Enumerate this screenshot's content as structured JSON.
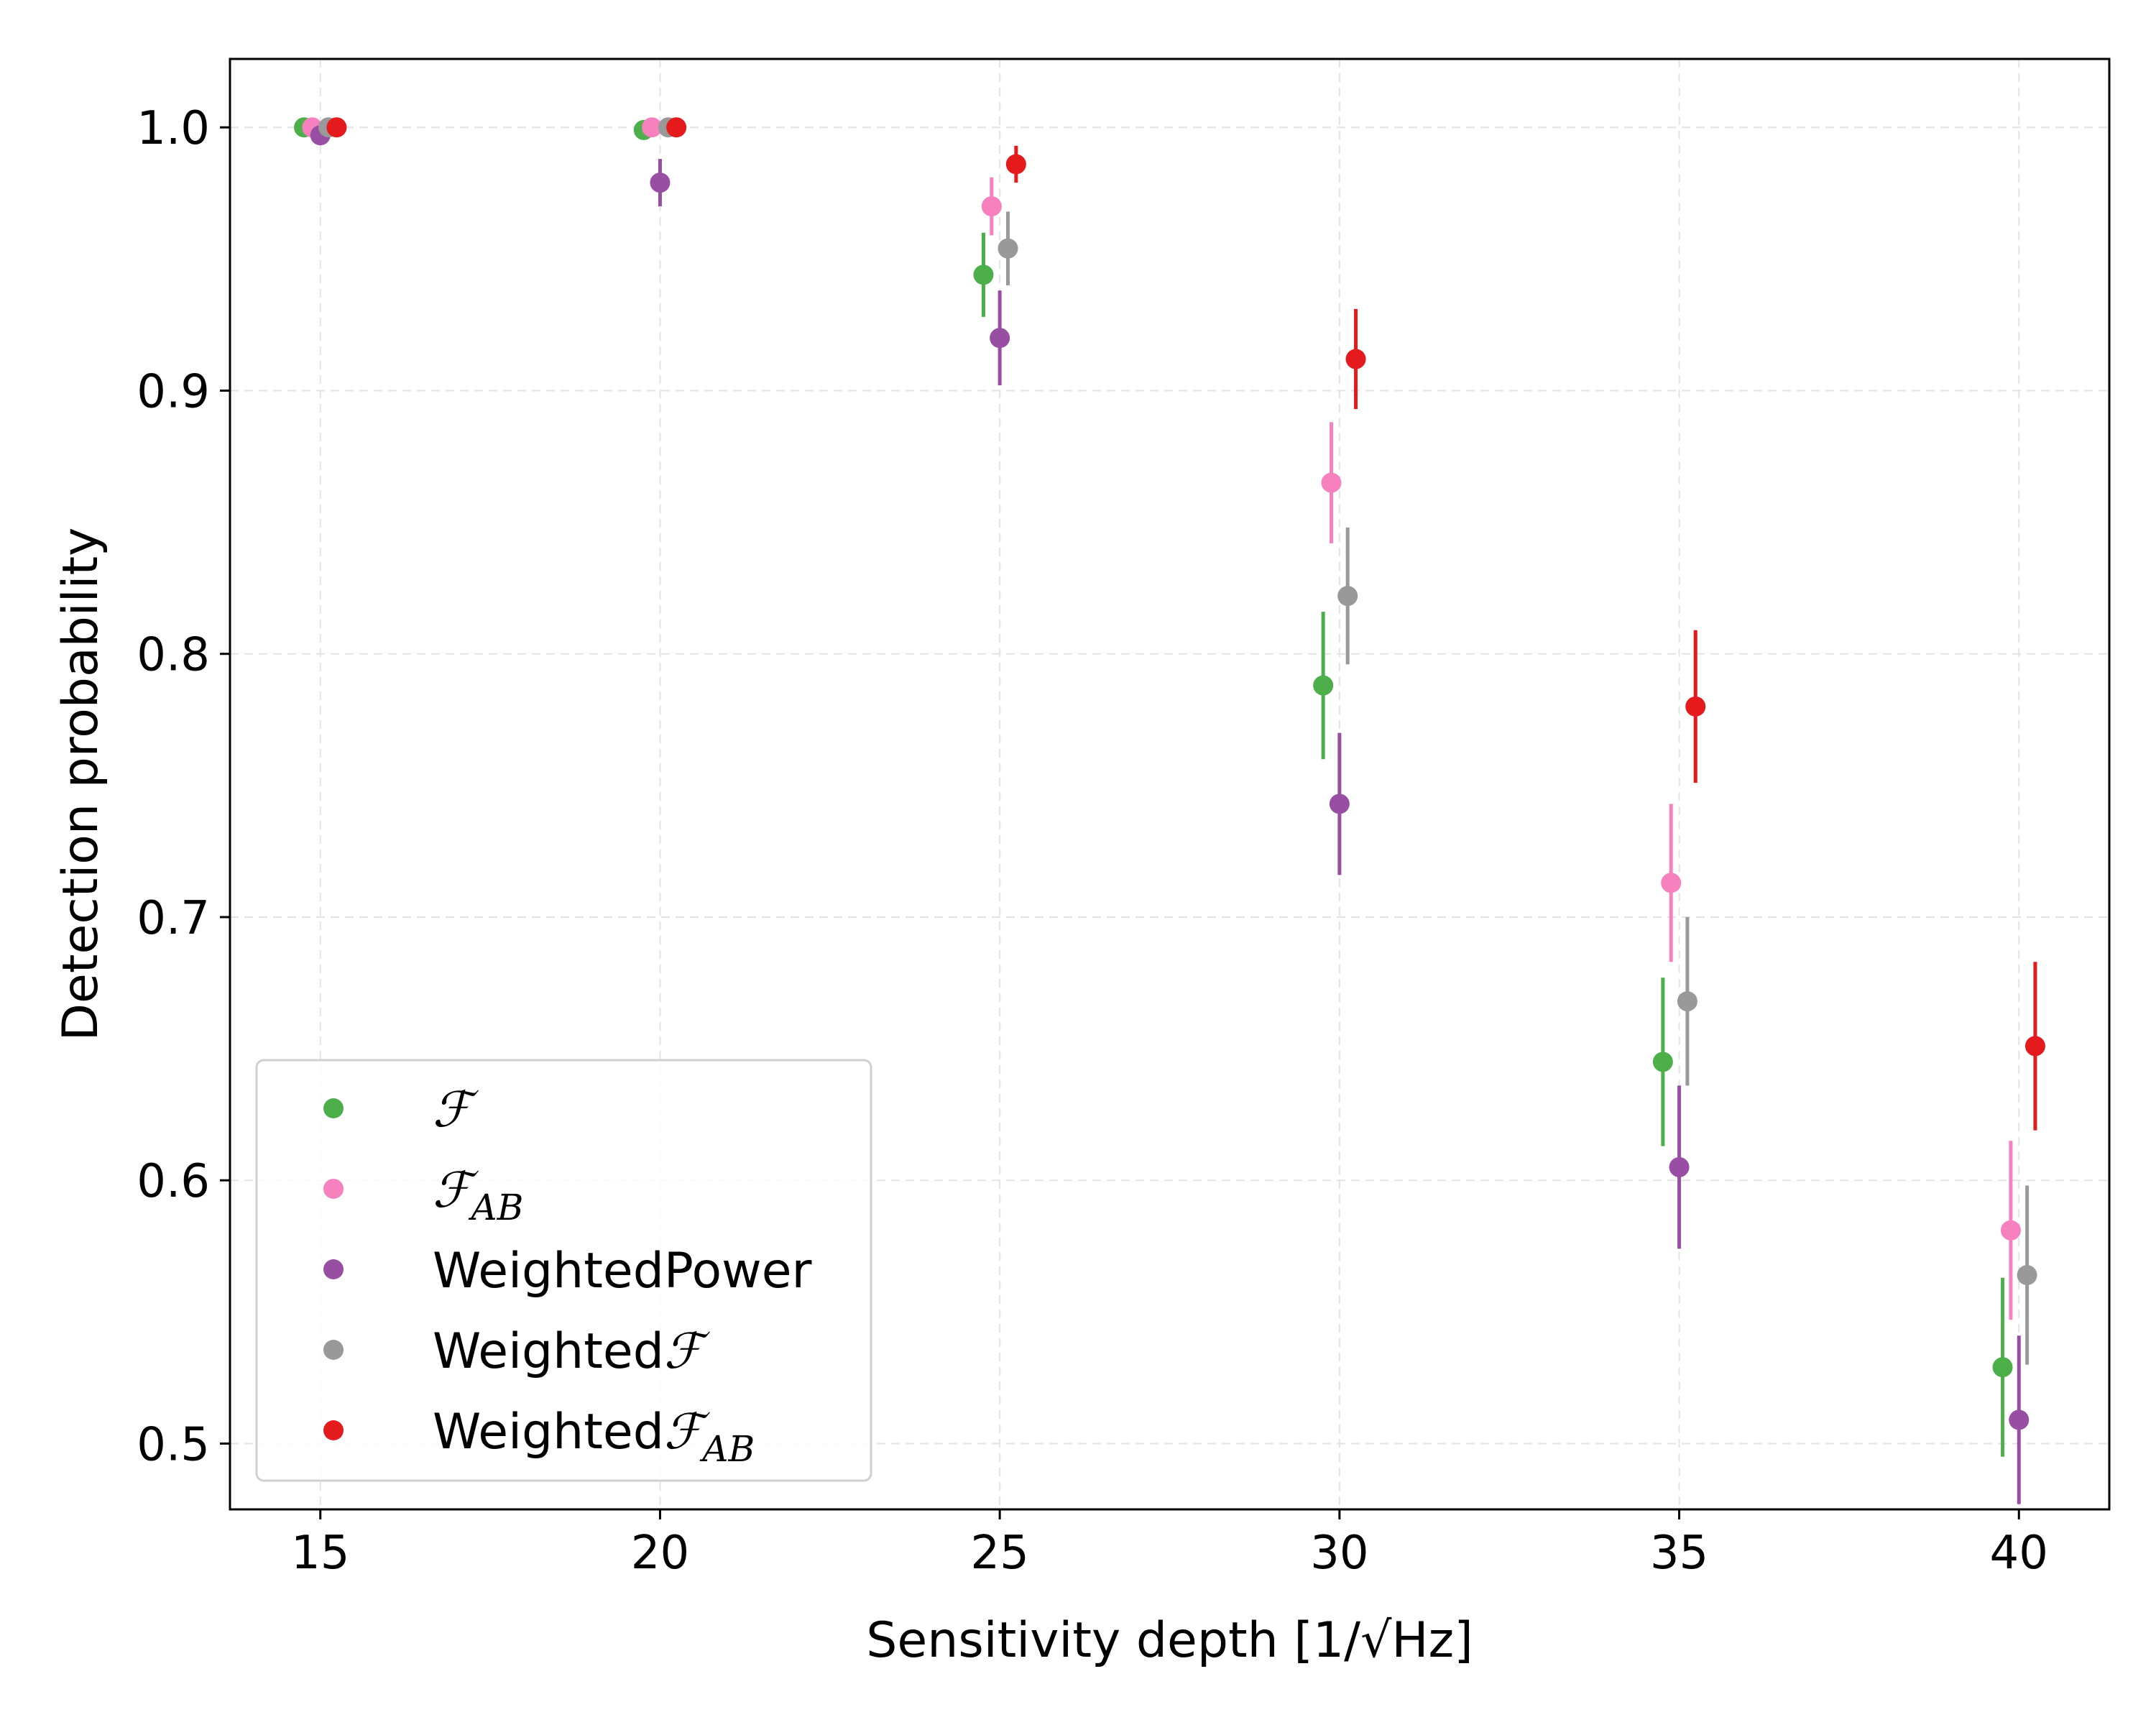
{
  "chart_data": {
    "type": "scatter",
    "xlabel": "Sensitivity depth [1/√Hz]",
    "ylabel": "Detection probability",
    "x_ticks": [
      "15",
      "20",
      "25",
      "30",
      "35",
      "40"
    ],
    "y_ticks": [
      "0.5",
      "0.6",
      "0.7",
      "0.8",
      "0.9",
      "1.0"
    ],
    "xlim": [
      13.67,
      41.33
    ],
    "ylim": [
      0.475,
      1.026
    ],
    "grid": true,
    "legend_position": "lower-left",
    "x": [
      15,
      20,
      25,
      30,
      35,
      40
    ],
    "series": [
      {
        "name": "ℱ",
        "legend_main": "ℱ",
        "legend_sub": "",
        "legend_prefix": "",
        "color": "#4daf4a",
        "values": [
          1.0,
          0.999,
          0.944,
          0.788,
          0.645,
          0.529
        ],
        "errors": [
          0.0,
          0.001,
          0.016,
          0.028,
          0.032,
          0.034
        ]
      },
      {
        "name": "ℱAB",
        "legend_main": "ℱ",
        "legend_sub": "AB",
        "legend_prefix": "",
        "color": "#f781bf",
        "values": [
          1.0,
          1.0,
          0.97,
          0.865,
          0.713,
          0.581
        ],
        "errors": [
          0.0,
          0.0,
          0.011,
          0.023,
          0.03,
          0.034
        ]
      },
      {
        "name": "WeightedPower",
        "legend_main": "",
        "legend_sub": "",
        "legend_prefix": "WeightedPower",
        "color": "#984ea3",
        "values": [
          0.997,
          0.979,
          0.92,
          0.743,
          0.605,
          0.509
        ],
        "errors": [
          0.002,
          0.009,
          0.018,
          0.027,
          0.031,
          0.032
        ]
      },
      {
        "name": "Weightedℱ",
        "legend_main": "ℱ",
        "legend_sub": "",
        "legend_prefix": "Weighted",
        "color": "#999999",
        "values": [
          1.0,
          1.0,
          0.954,
          0.822,
          0.668,
          0.564
        ],
        "errors": [
          0.0,
          0.0,
          0.014,
          0.026,
          0.032,
          0.034
        ]
      },
      {
        "name": "WeightedℱAB",
        "legend_main": "ℱ",
        "legend_sub": "AB",
        "legend_prefix": "Weighted",
        "color": "#e41a1c",
        "values": [
          1.0,
          1.0,
          0.986,
          0.912,
          0.78,
          0.651
        ],
        "errors": [
          0.0,
          0.0,
          0.007,
          0.019,
          0.029,
          0.032
        ]
      }
    ]
  }
}
